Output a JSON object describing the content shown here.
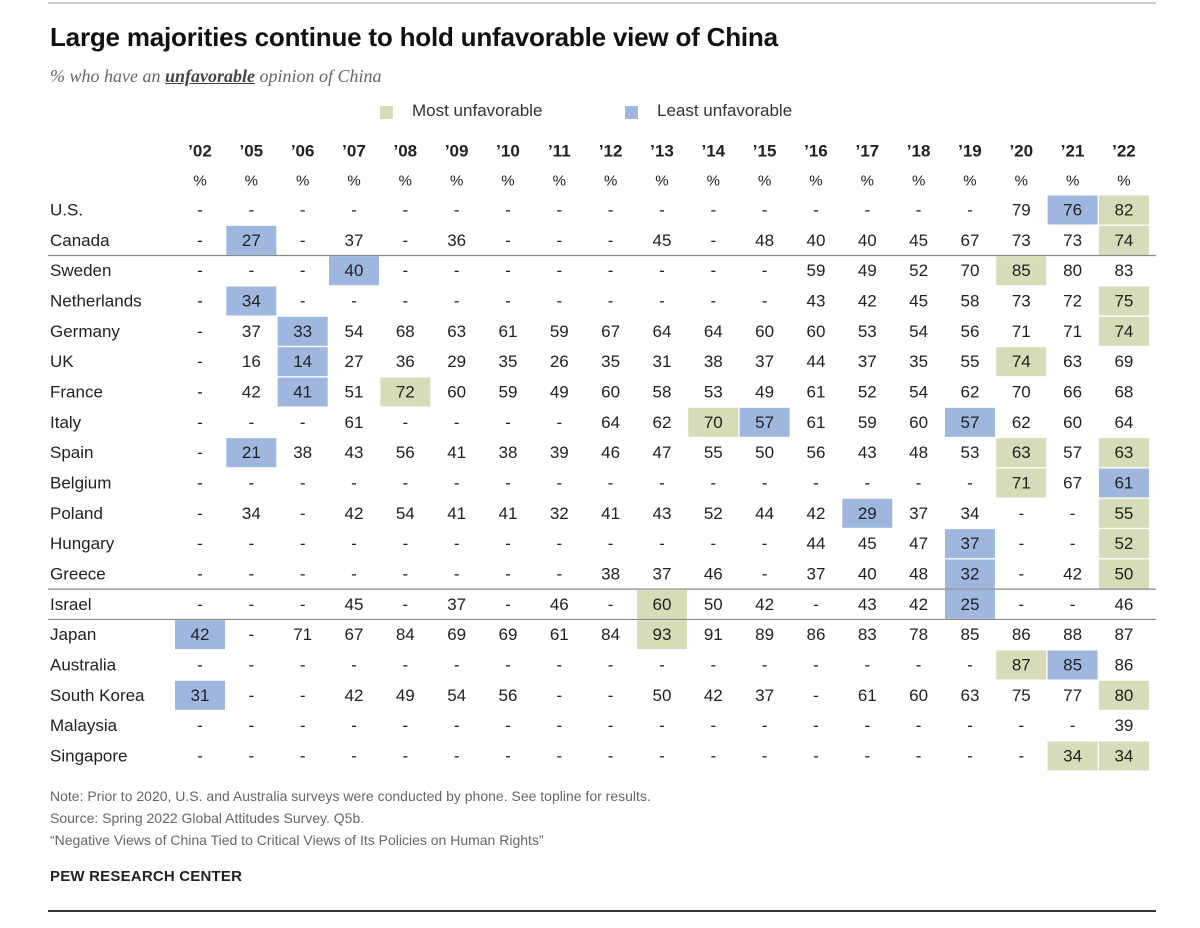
{
  "title": "Large majorities continue to hold unfavorable view of China",
  "subtitle": {
    "prefix": "% who have an ",
    "emphasis": "unfavorable",
    "suffix": " opinion of China"
  },
  "colors": {
    "most": "#d6dcb7",
    "least": "#9fb7df",
    "text": "#222222",
    "separator": "#8a8a8a"
  },
  "chart_data": {
    "type": "table",
    "title": "Large majorities continue to hold unfavorable view of China",
    "legend": [
      {
        "key": "most",
        "label": "Most unfavorable"
      },
      {
        "key": "least",
        "label": "Least unfavorable"
      }
    ],
    "years": [
      "’02",
      "’05",
      "’06",
      "’07",
      "’08",
      "’09",
      "’10",
      "’11",
      "’12",
      "’13",
      "’14",
      "’15",
      "’16",
      "’17",
      "’18",
      "’19",
      "’20",
      "’21",
      "’22"
    ],
    "unit_label": "%",
    "rows": [
      {
        "country": "U.S.",
        "values": [
          null,
          null,
          null,
          null,
          null,
          null,
          null,
          null,
          null,
          null,
          null,
          null,
          null,
          null,
          null,
          null,
          79,
          76,
          82
        ],
        "highlights": {
          "17": "least",
          "18": "most"
        }
      },
      {
        "country": "Canada",
        "values": [
          null,
          27,
          null,
          37,
          null,
          36,
          null,
          null,
          null,
          45,
          null,
          48,
          40,
          40,
          45,
          67,
          73,
          73,
          74
        ],
        "highlights": {
          "1": "least",
          "18": "most"
        }
      },
      {
        "country": "Sweden",
        "values": [
          null,
          null,
          null,
          40,
          null,
          null,
          null,
          null,
          null,
          null,
          null,
          null,
          59,
          49,
          52,
          70,
          85,
          80,
          83
        ],
        "highlights": {
          "3": "least",
          "16": "most"
        }
      },
      {
        "country": "Netherlands",
        "values": [
          null,
          34,
          null,
          null,
          null,
          null,
          null,
          null,
          null,
          null,
          null,
          null,
          43,
          42,
          45,
          58,
          73,
          72,
          75
        ],
        "highlights": {
          "1": "least",
          "18": "most"
        }
      },
      {
        "country": "Germany",
        "values": [
          null,
          37,
          33,
          54,
          68,
          63,
          61,
          59,
          67,
          64,
          64,
          60,
          60,
          53,
          54,
          56,
          71,
          71,
          74
        ],
        "highlights": {
          "2": "least",
          "18": "most"
        }
      },
      {
        "country": "UK",
        "values": [
          null,
          16,
          14,
          27,
          36,
          29,
          35,
          26,
          35,
          31,
          38,
          37,
          44,
          37,
          35,
          55,
          74,
          63,
          69
        ],
        "highlights": {
          "2": "least",
          "16": "most"
        }
      },
      {
        "country": "France",
        "values": [
          null,
          42,
          41,
          51,
          72,
          60,
          59,
          49,
          60,
          58,
          53,
          49,
          61,
          52,
          54,
          62,
          70,
          66,
          68
        ],
        "highlights": {
          "2": "least",
          "4": "most"
        }
      },
      {
        "country": "Italy",
        "values": [
          null,
          null,
          null,
          61,
          null,
          null,
          null,
          null,
          64,
          62,
          70,
          57,
          61,
          59,
          60,
          57,
          62,
          60,
          64
        ],
        "highlights": {
          "10": "most",
          "11": "least",
          "15": "least"
        }
      },
      {
        "country": "Spain",
        "values": [
          null,
          21,
          38,
          43,
          56,
          41,
          38,
          39,
          46,
          47,
          55,
          50,
          56,
          43,
          48,
          53,
          63,
          57,
          63
        ],
        "highlights": {
          "1": "least",
          "16": "most",
          "18": "most"
        }
      },
      {
        "country": "Belgium",
        "values": [
          null,
          null,
          null,
          null,
          null,
          null,
          null,
          null,
          null,
          null,
          null,
          null,
          null,
          null,
          null,
          null,
          71,
          67,
          61
        ],
        "highlights": {
          "16": "most",
          "18": "least"
        }
      },
      {
        "country": "Poland",
        "values": [
          null,
          34,
          null,
          42,
          54,
          41,
          41,
          32,
          41,
          43,
          52,
          44,
          42,
          29,
          37,
          34,
          null,
          null,
          55
        ],
        "highlights": {
          "13": "least",
          "18": "most"
        }
      },
      {
        "country": "Hungary",
        "values": [
          null,
          null,
          null,
          null,
          null,
          null,
          null,
          null,
          null,
          null,
          null,
          null,
          44,
          45,
          47,
          37,
          null,
          null,
          52
        ],
        "highlights": {
          "15": "least",
          "18": "most"
        }
      },
      {
        "country": "Greece",
        "values": [
          null,
          null,
          null,
          null,
          null,
          null,
          null,
          null,
          38,
          37,
          46,
          null,
          37,
          40,
          48,
          32,
          null,
          42,
          50
        ],
        "highlights": {
          "15": "least",
          "18": "most"
        }
      },
      {
        "country": "Israel",
        "values": [
          null,
          null,
          null,
          45,
          null,
          37,
          null,
          46,
          null,
          60,
          50,
          42,
          null,
          43,
          42,
          25,
          null,
          null,
          46
        ],
        "highlights": {
          "9": "most",
          "15": "least"
        }
      },
      {
        "country": "Japan",
        "values": [
          42,
          null,
          71,
          67,
          84,
          69,
          69,
          61,
          84,
          93,
          91,
          89,
          86,
          83,
          78,
          85,
          86,
          88,
          87
        ],
        "highlights": {
          "0": "least",
          "9": "most"
        }
      },
      {
        "country": "Australia",
        "values": [
          null,
          null,
          null,
          null,
          null,
          null,
          null,
          null,
          null,
          null,
          null,
          null,
          null,
          null,
          null,
          null,
          87,
          85,
          86
        ],
        "highlights": {
          "16": "most",
          "17": "least"
        }
      },
      {
        "country": "South Korea",
        "values": [
          31,
          null,
          null,
          42,
          49,
          54,
          56,
          null,
          null,
          50,
          42,
          37,
          null,
          61,
          60,
          63,
          75,
          77,
          80
        ],
        "highlights": {
          "0": "least",
          "18": "most"
        }
      },
      {
        "country": "Malaysia",
        "values": [
          null,
          null,
          null,
          null,
          null,
          null,
          null,
          null,
          null,
          null,
          null,
          null,
          null,
          null,
          null,
          null,
          null,
          null,
          39
        ],
        "highlights": {}
      },
      {
        "country": "Singapore",
        "values": [
          null,
          null,
          null,
          null,
          null,
          null,
          null,
          null,
          null,
          null,
          null,
          null,
          null,
          null,
          null,
          null,
          null,
          34,
          34
        ],
        "highlights": {
          "17": "most",
          "18": "most"
        }
      }
    ],
    "group_separators_after": [
      "Canada",
      "Greece",
      "Israel"
    ],
    "missing_symbol": "-"
  },
  "notes": {
    "note": "Note: Prior to 2020, U.S. and Australia surveys were conducted by phone. See topline for results.",
    "source": "Source: Spring 2022 Global Attitudes Survey. Q5b.",
    "report": "“Negative Views of China Tied to Critical Views of Its Policies on Human Rights”"
  },
  "brand": "PEW RESEARCH CENTER"
}
